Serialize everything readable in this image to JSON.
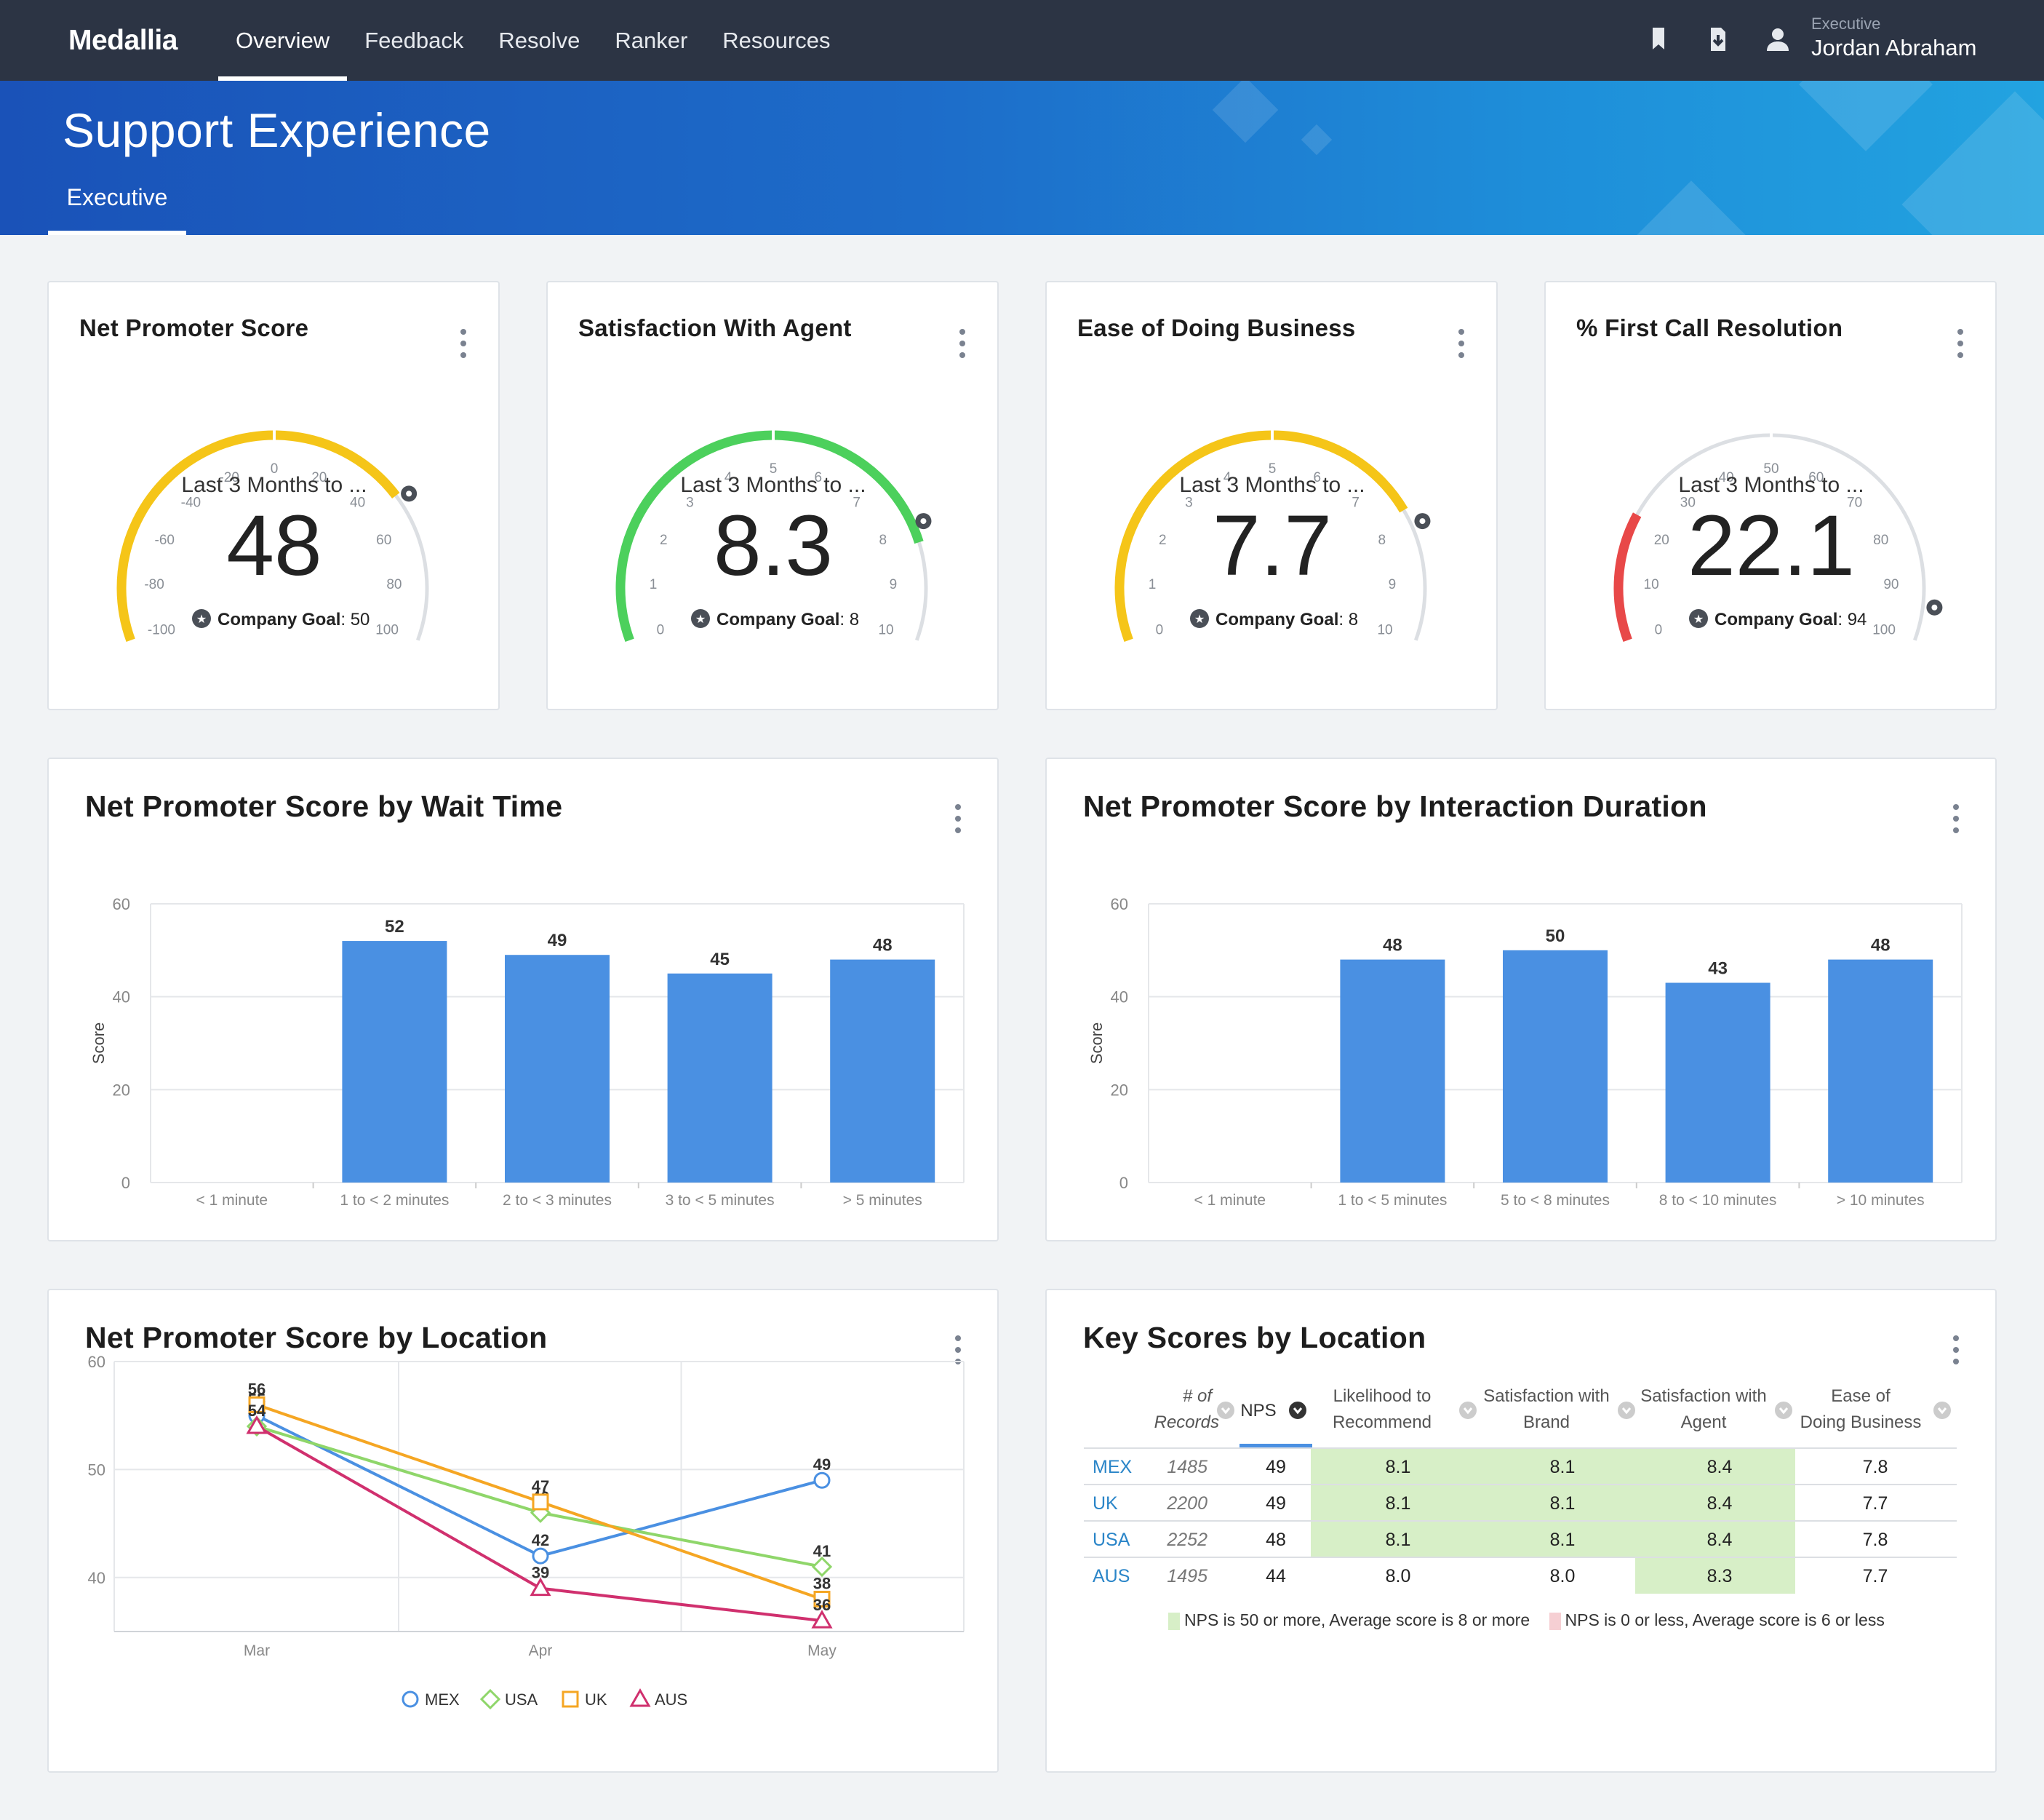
{
  "app": {
    "logo": "Medallia"
  },
  "nav": {
    "items": [
      "Overview",
      "Feedback",
      "Resolve",
      "Ranker",
      "Resources"
    ]
  },
  "user": {
    "role": "Executive",
    "name": "Jordan Abraham"
  },
  "page": {
    "title": "Support Experience",
    "tab": "Executive"
  },
  "colors": {
    "bar": "#4a90e2",
    "green_fill": "#d7efc7",
    "red_fill": "#f6cfd3",
    "gauge_yellow": "#f5c518",
    "gauge_green": "#4cd05c",
    "gauge_red": "#e84848"
  },
  "kpis": [
    {
      "title": "Net Promoter Score",
      "period": "Last 3 Months to ...",
      "value": "48",
      "goal_label": "Company Goal",
      "goal_value": ": 50",
      "ticks": [
        "-100",
        "-80",
        "-60",
        "-40",
        "-20",
        "0",
        "20",
        "40",
        "60",
        "80",
        "100"
      ],
      "min": -100,
      "max": 100,
      "score": 48,
      "goal": 50,
      "color": "#f5c518"
    },
    {
      "title": "Satisfaction With Agent",
      "period": "Last 3 Months to ...",
      "value": "8.3",
      "goal_label": "Company Goal",
      "goal_value": ": 8",
      "ticks": [
        "0",
        "1",
        "2",
        "3",
        "4",
        "5",
        "6",
        "7",
        "8",
        "9",
        "10"
      ],
      "min": 0,
      "max": 10,
      "score": 8.3,
      "goal": 8,
      "color": "#4cd05c"
    },
    {
      "title": "Ease of Doing Business",
      "period": "Last 3 Months to ...",
      "value": "7.7",
      "goal_label": "Company Goal",
      "goal_value": ": 8",
      "ticks": [
        "0",
        "1",
        "2",
        "3",
        "4",
        "5",
        "6",
        "7",
        "8",
        "9",
        "10"
      ],
      "min": 0,
      "max": 10,
      "score": 7.7,
      "goal": 8,
      "color": "#f5c518"
    },
    {
      "title": "% First Call Resolution",
      "period": "Last 3 Months to ...",
      "value": "22.1",
      "goal_label": "Company Goal",
      "goal_value": ": 94",
      "ticks": [
        "0",
        "10",
        "20",
        "30",
        "40",
        "50",
        "60",
        "70",
        "80",
        "90",
        "100"
      ],
      "min": 0,
      "max": 100,
      "score": 22.1,
      "goal": 94,
      "color": "#e84848"
    }
  ],
  "chart_data": [
    {
      "type": "bar",
      "title": "Net Promoter Score by Wait Time",
      "ylabel": "Score",
      "ylim": [
        0,
        60
      ],
      "yticks": [
        "0",
        "20",
        "40",
        "60"
      ],
      "categories": [
        "< 1 minute",
        "1 to < 2 minutes",
        "2 to < 3 minutes",
        "3 to < 5 minutes",
        "> 5 minutes"
      ],
      "values": [
        null,
        52,
        49,
        45,
        48
      ],
      "grid": true
    },
    {
      "type": "bar",
      "title": "Net Promoter Score by Interaction Duration",
      "ylabel": "Score",
      "ylim": [
        0,
        60
      ],
      "yticks": [
        "0",
        "20",
        "40",
        "60"
      ],
      "categories": [
        "< 1 minute",
        "1 to < 5 minutes",
        "5 to < 8 minutes",
        "8 to < 10 minutes",
        "> 10 minutes"
      ],
      "values": [
        null,
        48,
        50,
        43,
        48
      ],
      "grid": true
    },
    {
      "type": "line",
      "title": "Net Promoter Score by Location",
      "ylim": [
        35,
        60
      ],
      "yticks": [
        "40",
        "50",
        "60"
      ],
      "categories": [
        "Mar",
        "Apr",
        "May"
      ],
      "grid": true,
      "legend": "bottom-center",
      "series": [
        {
          "name": "MEX",
          "values": [
            55,
            42,
            49
          ],
          "color": "#4a90e2",
          "marker": "circle"
        },
        {
          "name": "USA",
          "values": [
            54,
            46,
            41
          ],
          "color": "#8fd66a",
          "marker": "diamond"
        },
        {
          "name": "UK",
          "values": [
            56,
            47,
            38
          ],
          "color": "#f5a623",
          "marker": "square"
        },
        {
          "name": "AUS",
          "values": [
            54,
            39,
            36
          ],
          "color": "#d0306e",
          "marker": "triangle"
        }
      ]
    }
  ],
  "key_scores": {
    "title": "Key Scores by Location",
    "headers": [
      "# of Records",
      "NPS",
      "Likelihood to Recommend",
      "Satisfaction with Brand",
      "Satisfaction with Agent",
      "Ease of Doing Business"
    ],
    "rows": [
      {
        "loc": "MEX",
        "records": "1485",
        "nps": "49",
        "ltr": "8.1",
        "brand": "8.1",
        "agent": "8.4",
        "ease": "7.8",
        "hl": [
          true,
          true,
          true,
          false
        ]
      },
      {
        "loc": "UK",
        "records": "2200",
        "nps": "49",
        "ltr": "8.1",
        "brand": "8.1",
        "agent": "8.4",
        "ease": "7.7",
        "hl": [
          true,
          true,
          true,
          false
        ]
      },
      {
        "loc": "USA",
        "records": "2252",
        "nps": "48",
        "ltr": "8.1",
        "brand": "8.1",
        "agent": "8.4",
        "ease": "7.8",
        "hl": [
          true,
          true,
          true,
          false
        ]
      },
      {
        "loc": "AUS",
        "records": "1495",
        "nps": "44",
        "ltr": "8.0",
        "brand": "8.0",
        "agent": "8.3",
        "ease": "7.7",
        "hl": [
          false,
          false,
          true,
          false
        ]
      }
    ],
    "legend_good": "NPS is 50 or more, Average score is 8 or more",
    "legend_bad": "NPS is 0 or less, Average score is 6 or less"
  }
}
